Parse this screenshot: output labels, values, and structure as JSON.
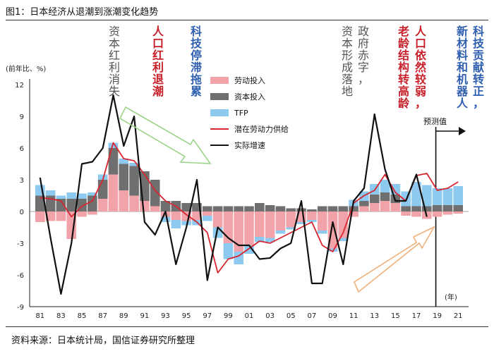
{
  "figure": {
    "title": "图1：日本经济从退潮到涨潮变化趋势",
    "source": "资料来源：日本统计局，国信证券研究所整理"
  },
  "colors": {
    "labor": "#f2a3aa",
    "capital": "#6f6f6f",
    "tfp": "#8ec9f0",
    "potential": "#d7262f",
    "actual": "#111111",
    "annotation_red": "#c8202a",
    "annotation_blue": "#2f5fb0",
    "annotation_gray": "#555555",
    "arrow_green": "#9cd48a",
    "arrow_orange": "#f0b07a"
  },
  "annotations": [
    {
      "text": "资本红利消失",
      "color": "gray"
    },
    {
      "text": "人口红利退潮",
      "color": "red"
    },
    {
      "text": "科技停滞拖累",
      "color": "blue"
    },
    {
      "text": "资本形成落地",
      "color": "gray"
    },
    {
      "text": "政府赤字，",
      "color": "gray"
    },
    {
      "text": "老龄结构转高龄",
      "color": "red"
    },
    {
      "text": "人口依然较弱，",
      "color": "red"
    },
    {
      "text": "新材料和机器人",
      "color": "blue"
    },
    {
      "text": "科技贡献转正，",
      "color": "blue"
    }
  ],
  "forecast_label": "预测值",
  "chart_data": {
    "type": "bar",
    "ylabel": "(前年比、%)",
    "xlabel": "(年)",
    "ylim": [
      -9,
      12
    ],
    "yticks": [
      12,
      9,
      6,
      3,
      0,
      -3,
      -6,
      -9
    ],
    "xlim": [
      1980,
      2022
    ],
    "xtick_labels": [
      "81",
      "83",
      "85",
      "87",
      "89",
      "91",
      "93",
      "95",
      "97",
      "99",
      "01",
      "03",
      "05",
      "07",
      "09",
      "11",
      "13",
      "15",
      "17",
      "19",
      "21"
    ],
    "xtick_years": [
      1981,
      1983,
      1985,
      1987,
      1989,
      1991,
      1993,
      1995,
      1997,
      1999,
      2001,
      2003,
      2005,
      2007,
      2009,
      2011,
      2013,
      2015,
      2017,
      2019,
      2021
    ],
    "forecast_start": 2019,
    "legend_position": "top-center",
    "years": [
      1981,
      1982,
      1983,
      1984,
      1985,
      1986,
      1987,
      1988,
      1989,
      1990,
      1991,
      1992,
      1993,
      1994,
      1995,
      1996,
      1997,
      1998,
      1999,
      2000,
      2001,
      2002,
      2003,
      2004,
      2005,
      2006,
      2007,
      2008,
      2009,
      2010,
      2011,
      2012,
      2013,
      2014,
      2015,
      2016,
      2017,
      2018,
      2019,
      2020,
      2021
    ],
    "series": [
      {
        "name": "劳动投入",
        "type": "bar",
        "values": [
          -1.0,
          -0.9,
          -0.9,
          -2.6,
          -0.5,
          -0.3,
          1.2,
          3.5,
          2.0,
          1.5,
          1.0,
          0.5,
          -0.5,
          -0.8,
          -0.9,
          -0.8,
          -0.4,
          -1.5,
          -3.0,
          -3.8,
          -3.2,
          -2.4,
          -2.5,
          -1.8,
          -1.5,
          -1.0,
          -0.8,
          -1.8,
          -3.5,
          -2.5,
          -0.5,
          0.5,
          0.8,
          1.0,
          0.8,
          -0.4,
          -0.5,
          -0.7,
          -0.5,
          -0.3,
          -0.2
        ]
      },
      {
        "name": "资本投入",
        "type": "bar",
        "values": [
          1.5,
          1.5,
          1.2,
          1.2,
          1.2,
          1.5,
          1.8,
          2.5,
          2.5,
          2.8,
          2.8,
          2.5,
          1.0,
          1.0,
          0.8,
          0.8,
          0.5,
          0.5,
          0.5,
          0.5,
          0.5,
          0.8,
          0.6,
          0.5,
          0.3,
          0.3,
          0.2,
          0.5,
          0.5,
          0.5,
          0.5,
          0.5,
          0.8,
          0.8,
          0.8,
          0.5,
          0.5,
          0.5,
          0.6,
          0.6,
          0.6
        ]
      },
      {
        "name": "TFP",
        "type": "bar",
        "values": [
          1.0,
          0.5,
          0.3,
          0.6,
          0.5,
          0.3,
          0.5,
          0.5,
          0.5,
          0.3,
          0.0,
          0.0,
          -0.5,
          -0.8,
          -0.4,
          -0.5,
          -0.5,
          -1.0,
          -1.5,
          -1.2,
          -0.8,
          -0.5,
          -0.4,
          -0.3,
          -0.2,
          -0.2,
          -0.2,
          -0.3,
          -0.3,
          -0.3,
          0.6,
          0.9,
          1.0,
          1.2,
          1.0,
          1.4,
          2.3,
          2.0,
          1.6,
          1.6,
          1.8
        ]
      },
      {
        "name": "潜在劳动力供给",
        "type": "line",
        "values": [
          1.3,
          1.2,
          1.0,
          -0.5,
          0.5,
          1.0,
          3.0,
          6.5,
          5.0,
          4.8,
          3.5,
          2.0,
          1.0,
          0.5,
          -0.3,
          -1.0,
          -2.0,
          -5.8,
          -4.5,
          -4.2,
          -3.5,
          -2.8,
          -3.0,
          -2.5,
          -2.0,
          -1.5,
          -1.0,
          -3.2,
          -3.8,
          -2.0,
          0.8,
          1.5,
          2.0,
          3.5,
          1.8,
          1.0,
          3.4,
          3.6,
          2.0,
          2.2,
          2.8
        ]
      },
      {
        "name": "实际增速",
        "type": "line",
        "values": [
          3.2,
          -2.5,
          -7.8,
          -3.0,
          4.5,
          4.7,
          6.0,
          11.0,
          6.2,
          9.0,
          -1.0,
          -2.2,
          0.0,
          -5.0,
          -1.5,
          3.0,
          -6.5,
          -1.5,
          -2.5,
          -3.2,
          -3.2,
          -4.5,
          -4.4,
          -3.5,
          -3.0,
          1.0,
          -6.8,
          -6.8,
          -1.0,
          -5.0,
          1.0,
          2.2,
          9.2,
          4.0,
          1.0,
          1.0,
          3.5,
          -0.5
        ]
      }
    ]
  }
}
